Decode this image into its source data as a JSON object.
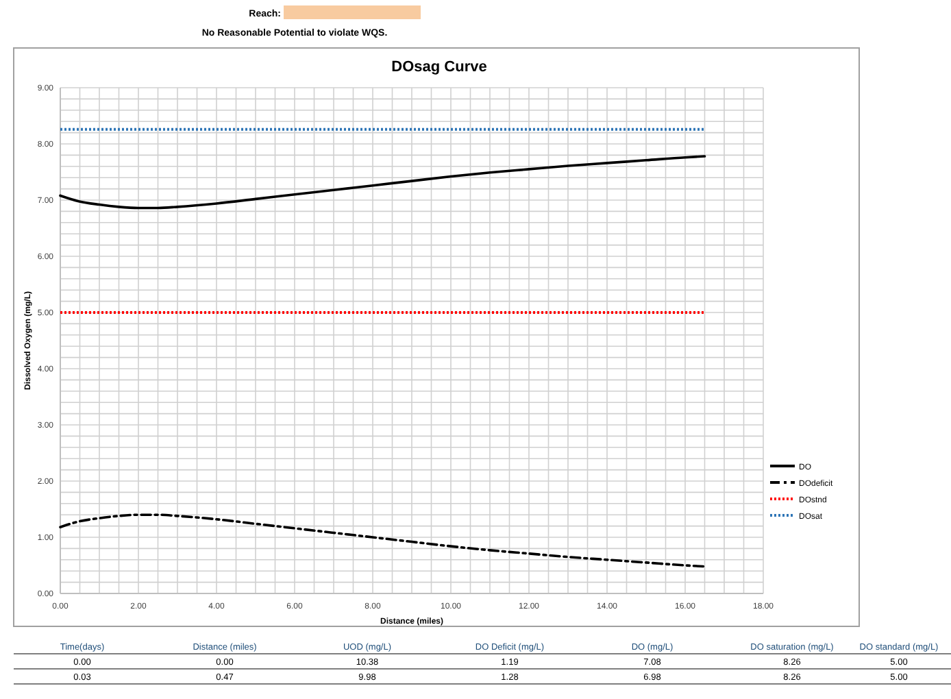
{
  "chart_data": {
    "type": "line",
    "title": "DOsag Curve",
    "xlabel": "Distance (miles)",
    "ylabel": "Dissolved Oxygen (mg/L)",
    "annotations": [
      "Reach:",
      "No Reasonable Potential to violate WQS.",
      "Time(days)",
      "Distance (miles)",
      "UOD (mg/L)",
      "DO Deficit (mg/L)",
      "DO (mg/L)",
      "DO saturation (mg/L)",
      "DO standard (mg/L)",
      "0.00",
      "0.00",
      "10.38",
      "1.19",
      "7.08",
      "8.26",
      "5.00",
      "0.03",
      "0.47",
      "9.98",
      "1.28",
      "6.98",
      "8.26",
      "5.00"
    ],
    "x": [
      0,
      0.47,
      1,
      1.5,
      2,
      2.5,
      3,
      4,
      5,
      6,
      7,
      8,
      9,
      10,
      11,
      12,
      13,
      14,
      15,
      16,
      16.5
    ],
    "series": [
      {
        "name": "DO",
        "color": "#000000",
        "line_style": "solid",
        "values": [
          7.08,
          6.98,
          6.92,
          6.88,
          6.86,
          6.86,
          6.88,
          6.94,
          7.02,
          7.1,
          7.18,
          7.26,
          7.34,
          7.42,
          7.49,
          7.55,
          7.61,
          7.66,
          7.71,
          7.76,
          7.78
        ]
      },
      {
        "name": "DOdeficit",
        "color": "#000000",
        "line_style": "dashdot",
        "values": [
          1.18,
          1.28,
          1.34,
          1.38,
          1.4,
          1.4,
          1.38,
          1.32,
          1.24,
          1.16,
          1.08,
          1,
          0.92,
          0.84,
          0.77,
          0.71,
          0.65,
          0.6,
          0.55,
          0.5,
          0.48
        ]
      },
      {
        "name": "DOstnd",
        "color": "#ff0000",
        "line_style": "dotted",
        "values": [
          5,
          5,
          5,
          5,
          5,
          5,
          5,
          5,
          5,
          5,
          5,
          5,
          5,
          5,
          5,
          5,
          5,
          5,
          5,
          5,
          5
        ]
      },
      {
        "name": "DOsat",
        "color": "#2e75b6",
        "line_style": "dotted",
        "values": [
          8.26,
          8.26,
          8.26,
          8.26,
          8.26,
          8.26,
          8.26,
          8.26,
          8.26,
          8.26,
          8.26,
          8.26,
          8.26,
          8.26,
          8.26,
          8.26,
          8.26,
          8.26,
          8.26,
          8.26,
          8.26
        ]
      }
    ],
    "xlim": [
      0,
      18
    ],
    "xticks": [
      {
        "value": 0,
        "label": "0.00"
      },
      {
        "value": 2,
        "label": "2.00"
      },
      {
        "value": 4,
        "label": "4.00"
      },
      {
        "value": 6,
        "label": "6.00"
      },
      {
        "value": 8,
        "label": "8.00"
      },
      {
        "value": 10,
        "label": "10.00"
      },
      {
        "value": 12,
        "label": "12.00"
      },
      {
        "value": 14,
        "label": "14.00"
      },
      {
        "value": 16,
        "label": "16.00"
      },
      {
        "value": 18,
        "label": "18.00"
      }
    ],
    "ylim": [
      0,
      9
    ],
    "yticks": [
      {
        "value": 0,
        "label": "0.00"
      },
      {
        "value": 1,
        "label": "1.00"
      },
      {
        "value": 2,
        "label": "2.00"
      },
      {
        "value": 3,
        "label": "3.00"
      },
      {
        "value": 4,
        "label": "4.00"
      },
      {
        "value": 5,
        "label": "5.00"
      },
      {
        "value": 6,
        "label": "6.00"
      },
      {
        "value": 7,
        "label": "7.00"
      },
      {
        "value": 8,
        "label": "8.00"
      },
      {
        "value": 9,
        "label": "9.00"
      }
    ],
    "grid": true,
    "legend": "right",
    "marker": "none"
  }
}
